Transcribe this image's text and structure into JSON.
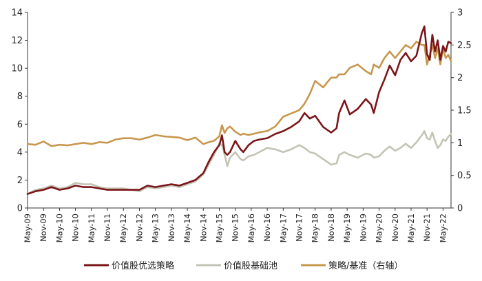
{
  "chart_data": {
    "type": "line",
    "title": "",
    "xlabel": "",
    "ylabel": "",
    "x_ticks": [
      "May-09",
      "Nov-09",
      "May-10",
      "Nov-10",
      "May-11",
      "Nov-11",
      "May-12",
      "Nov-12",
      "May-13",
      "Nov-13",
      "May-14",
      "Nov-14",
      "May-15",
      "Nov-15",
      "May-16",
      "Nov-16",
      "May-17",
      "Nov-17",
      "May-18",
      "Nov-18",
      "May-19",
      "Nov-19",
      "May-20",
      "Nov-20",
      "May-21",
      "Nov-21",
      "May-22"
    ],
    "y_left": {
      "lim": [
        0,
        14
      ],
      "ticks": [
        0,
        2,
        4,
        6,
        8,
        10,
        12,
        14
      ]
    },
    "y_right": {
      "lim": [
        0,
        3
      ],
      "ticks": [
        "0",
        "0.5",
        "1",
        "1.5",
        "2",
        "2.5",
        "3"
      ],
      "values": [
        0,
        0.5,
        1,
        1.5,
        2,
        2.5,
        3
      ]
    },
    "grid": false,
    "legend_position": "bottom",
    "series": [
      {
        "name": "价值股优选策略",
        "axis": "left",
        "color": "#7a1518",
        "x": [
          "2009-05",
          "2009-08",
          "2009-11",
          "2010-02",
          "2010-05",
          "2010-08",
          "2010-11",
          "2011-02",
          "2011-05",
          "2011-08",
          "2011-11",
          "2012-02",
          "2012-05",
          "2012-08",
          "2012-11",
          "2013-02",
          "2013-05",
          "2013-08",
          "2013-11",
          "2014-02",
          "2014-05",
          "2014-08",
          "2014-11",
          "2015-01",
          "2015-03",
          "2015-05",
          "2015-06",
          "2015-07",
          "2015-08",
          "2015-09",
          "2015-11",
          "2016-01",
          "2016-02",
          "2016-04",
          "2016-06",
          "2016-08",
          "2016-11",
          "2017-02",
          "2017-05",
          "2017-08",
          "2017-11",
          "2018-01",
          "2018-03",
          "2018-05",
          "2018-08",
          "2018-11",
          "2019-01",
          "2019-02",
          "2019-04",
          "2019-06",
          "2019-09",
          "2019-12",
          "2020-02",
          "2020-03",
          "2020-05",
          "2020-07",
          "2020-09",
          "2020-11",
          "2021-01",
          "2021-03",
          "2021-05",
          "2021-07",
          "2021-09",
          "2021-10",
          "2021-11",
          "2021-12",
          "2022-01",
          "2022-02",
          "2022-03",
          "2022-04",
          "2022-05",
          "2022-06",
          "2022-07",
          "2022-08"
        ],
        "values": [
          1.0,
          1.2,
          1.3,
          1.5,
          1.3,
          1.4,
          1.6,
          1.5,
          1.5,
          1.4,
          1.3,
          1.3,
          1.3,
          1.3,
          1.3,
          1.6,
          1.5,
          1.6,
          1.7,
          1.6,
          1.8,
          2.0,
          2.5,
          3.3,
          4.0,
          4.5,
          5.2,
          4.0,
          3.8,
          4.0,
          4.8,
          4.2,
          4.0,
          4.5,
          4.8,
          4.9,
          5.0,
          5.3,
          5.5,
          5.8,
          6.2,
          6.8,
          6.4,
          6.6,
          5.8,
          5.4,
          5.7,
          6.8,
          7.7,
          6.7,
          7.1,
          7.8,
          7.4,
          6.8,
          8.3,
          9.2,
          10.2,
          9.5,
          10.6,
          11.1,
          10.5,
          10.9,
          12.5,
          13.0,
          11.0,
          10.6,
          12.4,
          11.2,
          12.0,
          10.6,
          11.6,
          11.2,
          11.9,
          11.8
        ]
      },
      {
        "name": "价值股基础池",
        "axis": "left",
        "color": "#c3c4b4",
        "x": [
          "2009-05",
          "2009-08",
          "2009-11",
          "2010-02",
          "2010-05",
          "2010-08",
          "2010-11",
          "2011-02",
          "2011-05",
          "2011-08",
          "2011-11",
          "2012-02",
          "2012-05",
          "2012-08",
          "2012-11",
          "2013-02",
          "2013-05",
          "2013-08",
          "2013-11",
          "2014-02",
          "2014-05",
          "2014-08",
          "2014-11",
          "2015-01",
          "2015-03",
          "2015-05",
          "2015-06",
          "2015-07",
          "2015-08",
          "2015-09",
          "2015-11",
          "2016-01",
          "2016-02",
          "2016-04",
          "2016-06",
          "2016-08",
          "2016-11",
          "2017-02",
          "2017-05",
          "2017-08",
          "2017-11",
          "2018-01",
          "2018-03",
          "2018-05",
          "2018-08",
          "2018-11",
          "2019-01",
          "2019-02",
          "2019-04",
          "2019-06",
          "2019-09",
          "2019-12",
          "2020-02",
          "2020-03",
          "2020-05",
          "2020-07",
          "2020-09",
          "2020-11",
          "2021-01",
          "2021-03",
          "2021-05",
          "2021-07",
          "2021-09",
          "2021-10",
          "2021-11",
          "2021-12",
          "2022-01",
          "2022-02",
          "2022-03",
          "2022-04",
          "2022-05",
          "2022-06",
          "2022-07",
          "2022-08"
        ],
        "values": [
          1.0,
          1.3,
          1.4,
          1.6,
          1.4,
          1.5,
          1.8,
          1.7,
          1.7,
          1.5,
          1.4,
          1.4,
          1.4,
          1.3,
          1.2,
          1.5,
          1.4,
          1.5,
          1.6,
          1.5,
          1.7,
          1.9,
          2.4,
          3.1,
          3.8,
          4.6,
          4.5,
          3.8,
          3.0,
          3.6,
          4.0,
          3.5,
          3.4,
          3.7,
          3.8,
          4.0,
          4.3,
          4.2,
          4.0,
          4.2,
          4.5,
          4.3,
          4.0,
          3.9,
          3.5,
          3.1,
          3.2,
          3.8,
          4.0,
          3.8,
          3.6,
          3.9,
          3.8,
          3.6,
          3.7,
          4.1,
          4.4,
          4.1,
          4.3,
          4.6,
          4.3,
          4.7,
          5.2,
          5.5,
          5.0,
          4.9,
          5.4,
          4.8,
          4.3,
          4.5,
          4.9,
          4.8,
          5.1,
          5.3
        ]
      },
      {
        "name": "策略/基准（右轴）",
        "axis": "right",
        "color": "#c7974e",
        "x": [
          "2009-05",
          "2009-08",
          "2009-11",
          "2010-02",
          "2010-05",
          "2010-08",
          "2010-11",
          "2011-02",
          "2011-05",
          "2011-08",
          "2011-11",
          "2012-02",
          "2012-05",
          "2012-08",
          "2012-11",
          "2013-02",
          "2013-05",
          "2013-08",
          "2013-11",
          "2014-02",
          "2014-05",
          "2014-08",
          "2014-11",
          "2015-01",
          "2015-03",
          "2015-05",
          "2015-06",
          "2015-07",
          "2015-08",
          "2015-09",
          "2015-11",
          "2016-01",
          "2016-02",
          "2016-04",
          "2016-06",
          "2016-08",
          "2016-11",
          "2017-02",
          "2017-05",
          "2017-08",
          "2017-11",
          "2018-01",
          "2018-03",
          "2018-05",
          "2018-08",
          "2018-11",
          "2019-01",
          "2019-02",
          "2019-04",
          "2019-06",
          "2019-09",
          "2019-12",
          "2020-02",
          "2020-03",
          "2020-05",
          "2020-07",
          "2020-09",
          "2020-11",
          "2021-01",
          "2021-03",
          "2021-05",
          "2021-07",
          "2021-09",
          "2021-10",
          "2021-11",
          "2021-12",
          "2022-01",
          "2022-02",
          "2022-03",
          "2022-04",
          "2022-05",
          "2022-06",
          "2022-07",
          "2022-08"
        ],
        "values": [
          0.98,
          0.97,
          1.02,
          0.95,
          0.97,
          0.96,
          0.98,
          1.0,
          0.98,
          1.01,
          1.0,
          1.05,
          1.07,
          1.07,
          1.05,
          1.08,
          1.12,
          1.1,
          1.09,
          1.08,
          1.04,
          1.08,
          0.98,
          1.01,
          1.03,
          1.1,
          1.27,
          1.15,
          1.22,
          1.25,
          1.17,
          1.12,
          1.14,
          1.12,
          1.14,
          1.16,
          1.18,
          1.25,
          1.4,
          1.45,
          1.5,
          1.6,
          1.75,
          1.95,
          1.85,
          2.0,
          2.0,
          2.05,
          2.05,
          2.15,
          2.2,
          2.1,
          2.05,
          2.2,
          2.15,
          2.3,
          2.4,
          2.3,
          2.4,
          2.5,
          2.45,
          2.55,
          2.5,
          2.5,
          2.2,
          2.35,
          2.5,
          2.3,
          2.45,
          2.2,
          2.45,
          2.3,
          2.35,
          2.25
        ]
      }
    ]
  },
  "legend": [
    {
      "label": "价值股优选策略",
      "color": "#7a1518"
    },
    {
      "label": "价值股基础池",
      "color": "#c3c4b4"
    },
    {
      "label": "策略/基准（右轴）",
      "color": "#c7974e"
    }
  ]
}
